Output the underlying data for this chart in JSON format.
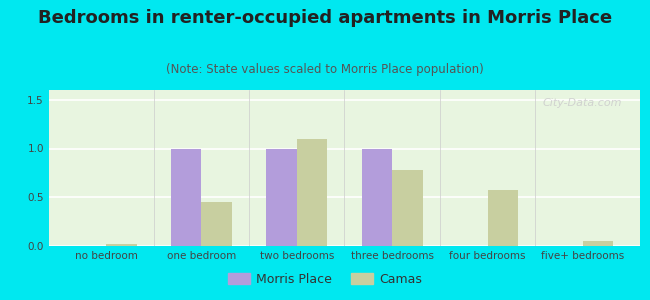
{
  "title": "Bedrooms in renter-occupied apartments in Morris Place",
  "subtitle": "(Note: State values scaled to Morris Place population)",
  "categories": [
    "no bedroom",
    "one bedroom",
    "two bedrooms",
    "three bedrooms",
    "four bedrooms",
    "five+ bedrooms"
  ],
  "morris_place": [
    0,
    1.0,
    1.0,
    1.0,
    0,
    0
  ],
  "camas": [
    0.02,
    0.45,
    1.1,
    0.78,
    0.57,
    0.05
  ],
  "morris_color": "#b39ddb",
  "camas_color": "#c8cfa0",
  "bg_outer": "#00e8f0",
  "bg_plot": "#e8f5e0",
  "ylim": [
    0,
    1.6
  ],
  "yticks": [
    0,
    0.5,
    1.0,
    1.5
  ],
  "bar_width": 0.32,
  "title_fontsize": 13,
  "subtitle_fontsize": 8.5,
  "tick_fontsize": 7.5,
  "legend_fontsize": 9
}
